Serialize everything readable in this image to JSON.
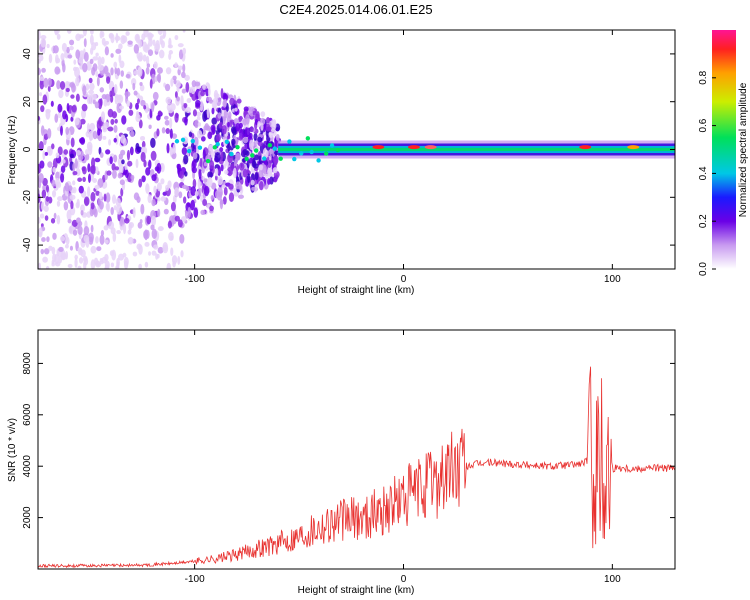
{
  "figure": {
    "title": "C2E4.2025.014.06.01.E25"
  },
  "chart_data": [
    {
      "type": "heatmap",
      "xlabel": "Height of straight line (km)",
      "ylabel": "Frequency (Hz)",
      "xlim": [
        -175,
        130
      ],
      "ylim": [
        -50,
        50
      ],
      "xticks": [
        -100,
        0,
        100
      ],
      "yticks": [
        -40,
        -20,
        0,
        20,
        40
      ],
      "grid": false,
      "colorbar": {
        "label": "Normalized spectral amplitude",
        "range": [
          0,
          1
        ],
        "ticks": [
          0.0,
          0.2,
          0.4,
          0.6,
          0.8
        ],
        "tick_labels": [
          "0.0",
          "0.2",
          "0.4",
          "0.6",
          "0.8"
        ]
      }
    },
    {
      "type": "line",
      "xlabel": "Height of straight line (km)",
      "ylabel": "SNR (10 * v/v)",
      "xlim": [
        -175,
        130
      ],
      "ylim": [
        0,
        9300
      ],
      "xticks": [
        -100,
        0,
        100
      ],
      "yticks": [
        2000,
        4000,
        6000,
        8000
      ],
      "grid": false,
      "color": "#e8312f",
      "series": [
        {
          "x": [
            -175,
            -150,
            -125,
            -110,
            -100,
            -90,
            -80,
            -70,
            -60,
            -50,
            -40,
            -30,
            -20,
            -10,
            0,
            10,
            20,
            30,
            40,
            50,
            60,
            70,
            80,
            85,
            88,
            90,
            92,
            95,
            98,
            100,
            102,
            105,
            110,
            120,
            130
          ],
          "values": [
            120,
            130,
            150,
            220,
            300,
            400,
            550,
            800,
            1000,
            1300,
            1700,
            1900,
            2000,
            2300,
            2700,
            3200,
            3700,
            4000,
            4150,
            4100,
            4050,
            4000,
            4050,
            4100,
            4200,
            4300,
            4400,
            4100,
            4000,
            3900,
            3950,
            3950,
            3900,
            3950,
            3900
          ]
        }
      ]
    }
  ]
}
